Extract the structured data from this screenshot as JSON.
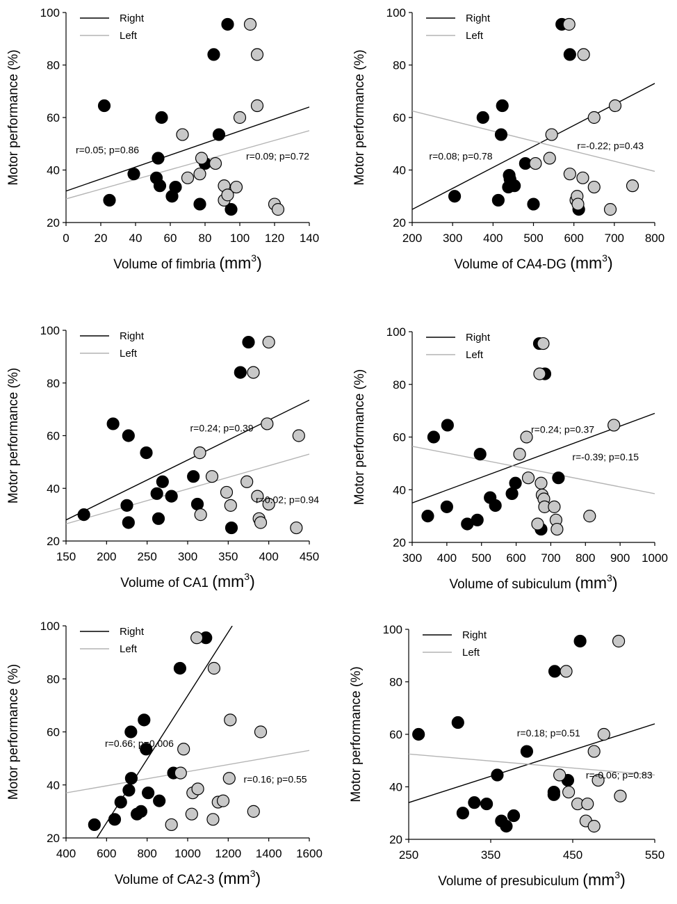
{
  "colors": {
    "right": "#000000",
    "left": "#c8c8c8",
    "left_line": "#b4b4b4",
    "marker_edge": "#000000"
  },
  "legend": {
    "right": "Right",
    "left": "Left"
  },
  "chart_data": [
    {
      "type": "scatter",
      "xlabel": "Volume of fimbria",
      "unit": "mm",
      "unit_exp": "3",
      "ylabel": "Motor performance (%)",
      "xlim": [
        0,
        140
      ],
      "ylim": [
        20,
        100
      ],
      "xticks": [
        "0",
        "20",
        "40",
        "60",
        "80",
        "100",
        "120",
        "140"
      ],
      "yticks": [
        "20",
        "40",
        "60",
        "80",
        "100"
      ],
      "series": [
        {
          "name": "Right",
          "line": [
            32,
            64
          ],
          "points": [
            [
              22,
              64.5
            ],
            [
              25,
              28.5
            ],
            [
              39,
              38.5
            ],
            [
              52,
              37
            ],
            [
              53,
              44.5
            ],
            [
              54,
              34
            ],
            [
              55,
              60
            ],
            [
              61,
              30
            ],
            [
              63,
              33.5
            ],
            [
              77,
              27
            ],
            [
              80,
              42.5
            ],
            [
              85,
              84
            ],
            [
              88,
              53.5
            ],
            [
              93,
              95.5
            ],
            [
              95,
              25
            ]
          ]
        },
        {
          "name": "Left",
          "line": [
            29,
            55
          ],
          "points": [
            [
              67,
              53.5
            ],
            [
              70,
              37
            ],
            [
              77,
              38.5
            ],
            [
              78,
              44.5
            ],
            [
              86,
              42.5
            ],
            [
              91,
              34
            ],
            [
              91,
              28.5
            ],
            [
              93,
              30.5
            ],
            [
              98,
              33.5
            ],
            [
              100,
              60
            ],
            [
              106,
              95.5
            ],
            [
              110,
              84
            ],
            [
              110,
              64.5
            ],
            [
              120,
              27
            ],
            [
              122,
              25
            ]
          ]
        }
      ],
      "annotations": {
        "right": "r=0.05; p=0.86",
        "left": "r=0.09; p=0.72"
      }
    },
    {
      "type": "scatter",
      "xlabel": "Volume of CA4-DG",
      "unit": "mm",
      "unit_exp": "3",
      "ylabel": "Motor performance (%)",
      "xlim": [
        200,
        800
      ],
      "ylim": [
        20,
        100
      ],
      "xticks": [
        "200",
        "300",
        "400",
        "500",
        "600",
        "700",
        "800"
      ],
      "yticks": [
        "20",
        "40",
        "60",
        "80",
        "100"
      ],
      "series": [
        {
          "name": "Right",
          "line": [
            25,
            73
          ],
          "points": [
            [
              305,
              30
            ],
            [
              375,
              60
            ],
            [
              413,
              28.5
            ],
            [
              420,
              53.5
            ],
            [
              423,
              64.5
            ],
            [
              438,
              33.5
            ],
            [
              440,
              38
            ],
            [
              442,
              36.5
            ],
            [
              453,
              34
            ],
            [
              480,
              42.5
            ],
            [
              500,
              27
            ],
            [
              570,
              95.5
            ],
            [
              590,
              84
            ],
            [
              612,
              25
            ]
          ]
        },
        {
          "name": "Left",
          "line": [
            62.5,
            39.5
          ],
          "points": [
            [
              505,
              42.5
            ],
            [
              540,
              44.5
            ],
            [
              545,
              53.5
            ],
            [
              588,
              95.5
            ],
            [
              590,
              38.5
            ],
            [
              605,
              28.5
            ],
            [
              608,
              30
            ],
            [
              610,
              27
            ],
            [
              622,
              37
            ],
            [
              624,
              84
            ],
            [
              650,
              60
            ],
            [
              650,
              33.5
            ],
            [
              690,
              25
            ],
            [
              702,
              64.5
            ],
            [
              745,
              34
            ]
          ]
        }
      ],
      "annotations": {
        "right": "r=0.08; p=0.78",
        "left": "r=-0.22; p=0.43"
      }
    },
    {
      "type": "scatter",
      "xlabel": "Volume of CA1",
      "unit": "mm",
      "unit_exp": "3",
      "ylabel": "Motor performance (%)",
      "xlim": [
        150,
        450
      ],
      "ylim": [
        20,
        100
      ],
      "xticks": [
        "150",
        "200",
        "250",
        "300",
        "350",
        "400",
        "450"
      ],
      "yticks": [
        "20",
        "40",
        "60",
        "80",
        "100"
      ],
      "series": [
        {
          "name": "Right",
          "line": [
            28,
            73.5
          ],
          "points": [
            [
              172,
              30
            ],
            [
              208,
              64.5
            ],
            [
              225,
              33.5
            ],
            [
              227,
              60
            ],
            [
              227,
              27
            ],
            [
              249,
              53.5
            ],
            [
              262,
              38
            ],
            [
              264,
              28.5
            ],
            [
              269,
              42.5
            ],
            [
              280,
              37
            ],
            [
              307,
              44.5
            ],
            [
              312,
              34
            ],
            [
              354,
              25
            ],
            [
              365,
              84
            ],
            [
              375,
              95.5
            ]
          ]
        },
        {
          "name": "Left",
          "line": [
            26.5,
            53
          ],
          "points": [
            [
              315,
              53.5
            ],
            [
              316,
              30
            ],
            [
              330,
              44.5
            ],
            [
              348,
              38.5
            ],
            [
              353,
              33.5
            ],
            [
              373,
              42.5
            ],
            [
              381,
              84
            ],
            [
              386,
              37
            ],
            [
              388,
              28.5
            ],
            [
              390,
              27
            ],
            [
              398,
              64.5
            ],
            [
              400,
              34
            ],
            [
              400,
              95.5
            ],
            [
              434,
              25
            ],
            [
              437,
              60
            ]
          ]
        }
      ],
      "annotations": {
        "right": "r=0.24; p=0.39",
        "left": "r=0.02; p=0.94"
      }
    },
    {
      "type": "scatter",
      "xlabel": "Volume of subiculum",
      "unit": "mm",
      "unit_exp": "3",
      "ylabel": "Motor performance (%)",
      "xlim": [
        300,
        1000
      ],
      "ylim": [
        20,
        100
      ],
      "xticks": [
        "300",
        "400",
        "500",
        "600",
        "700",
        "800",
        "900",
        "1000"
      ],
      "yticks": [
        "20",
        "40",
        "60",
        "80",
        "100"
      ],
      "series": [
        {
          "name": "Right",
          "line": [
            35,
            69
          ],
          "points": [
            [
              345,
              30
            ],
            [
              362,
              60
            ],
            [
              400,
              33.5
            ],
            [
              402,
              64.5
            ],
            [
              459,
              27
            ],
            [
              488,
              28.5
            ],
            [
              496,
              53.5
            ],
            [
              525,
              37
            ],
            [
              540,
              34
            ],
            [
              588,
              38.5
            ],
            [
              598,
              42.5
            ],
            [
              667,
              95.5
            ],
            [
              672,
              25
            ],
            [
              683,
              84
            ],
            [
              722,
              44.5
            ]
          ]
        },
        {
          "name": "Left",
          "line": [
            56.5,
            38.5
          ],
          "points": [
            [
              610,
              53.5
            ],
            [
              630,
              60
            ],
            [
              635,
              44.5
            ],
            [
              662,
              27
            ],
            [
              668,
              84
            ],
            [
              672,
              42.5
            ],
            [
              675,
              38
            ],
            [
              678,
              95.5
            ],
            [
              680,
              36.5
            ],
            [
              682,
              33.5
            ],
            [
              710,
              33.5
            ],
            [
              715,
              28.5
            ],
            [
              718,
              25
            ],
            [
              812,
              30
            ],
            [
              882,
              64.5
            ]
          ]
        }
      ],
      "annotations": {
        "right": "r=0.24; p=0.37",
        "left": "r=-0.39; p=0.15"
      }
    },
    {
      "type": "scatter",
      "xlabel": "Volume of CA2-3",
      "unit": "mm",
      "unit_exp": "3",
      "ylabel": "Motor performance (%)",
      "xlim": [
        400,
        1600
      ],
      "ylim": [
        20,
        100
      ],
      "xticks": [
        "400",
        "600",
        "800",
        "1000",
        "1200",
        "1400",
        "1600"
      ],
      "yticks": [
        "20",
        "40",
        "60",
        "80",
        "100"
      ],
      "series": [
        {
          "name": "Right",
          "line_x": [
            552,
            1220
          ],
          "line_y": [
            20,
            100
          ],
          "points": [
            [
              540,
              25
            ],
            [
              640,
              27
            ],
            [
              670,
              33.5
            ],
            [
              710,
              38
            ],
            [
              720,
              60
            ],
            [
              722,
              42.5
            ],
            [
              750,
              29
            ],
            [
              770,
              30
            ],
            [
              785,
              64.5
            ],
            [
              795,
              53.5
            ],
            [
              805,
              37
            ],
            [
              860,
              34
            ],
            [
              930,
              44.5
            ],
            [
              962,
              84
            ],
            [
              1090,
              95.5
            ]
          ]
        },
        {
          "name": "Left",
          "line": [
            37,
            53
          ],
          "points": [
            [
              920,
              25
            ],
            [
              965,
              44.5
            ],
            [
              980,
              53.5
            ],
            [
              1020,
              29
            ],
            [
              1025,
              37
            ],
            [
              1045,
              95.5
            ],
            [
              1050,
              38.5
            ],
            [
              1125,
              27
            ],
            [
              1130,
              84
            ],
            [
              1150,
              33.5
            ],
            [
              1175,
              34
            ],
            [
              1205,
              42.5
            ],
            [
              1210,
              64.5
            ],
            [
              1325,
              30
            ],
            [
              1360,
              60
            ]
          ]
        }
      ],
      "annotations": {
        "right": "r=0.66; p=0.006",
        "left": "r=0.16; p=0.55"
      }
    },
    {
      "type": "scatter",
      "xlabel": "Volume of presubiculum",
      "unit": "mm",
      "unit_exp": "3",
      "ylabel": "Motor performance (%)",
      "xlim": [
        250,
        550
      ],
      "ylim": [
        20,
        100
      ],
      "xticks": [
        "250",
        "350",
        "450",
        "550"
      ],
      "yticks": [
        "20",
        "40",
        "60",
        "80",
        "100"
      ],
      "series": [
        {
          "name": "Right",
          "line": [
            34,
            64
          ],
          "points": [
            [
              262,
              60
            ],
            [
              310,
              64.5
            ],
            [
              316,
              30
            ],
            [
              330,
              34
            ],
            [
              345,
              33.5
            ],
            [
              358,
              44.5
            ],
            [
              363,
              27
            ],
            [
              369,
              25
            ],
            [
              378,
              29
            ],
            [
              394,
              53.5
            ],
            [
              427,
              38
            ],
            [
              427,
              37
            ],
            [
              428,
              84
            ],
            [
              444,
              42.5
            ],
            [
              459,
              95.5
            ]
          ]
        },
        {
          "name": "Left",
          "line": [
            52.5,
            44.5
          ],
          "points": [
            [
              434,
              44.5
            ],
            [
              442,
              84
            ],
            [
              445,
              38
            ],
            [
              456,
              33.5
            ],
            [
              466,
              27
            ],
            [
              468,
              33.5
            ],
            [
              476,
              25
            ],
            [
              476,
              53.5
            ],
            [
              481,
              42.5
            ],
            [
              488,
              60
            ],
            [
              506,
              95.5
            ],
            [
              508,
              36.5
            ]
          ]
        }
      ],
      "annotations": {
        "right": "r=0.18; p=0.51",
        "left": "r=-0.06; p=0.83"
      }
    }
  ]
}
